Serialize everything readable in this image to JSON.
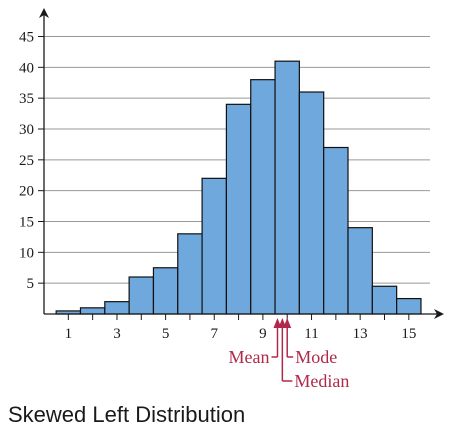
{
  "caption": "Skewed Left Distribution",
  "chart_data": {
    "type": "bar",
    "title": "",
    "xlabel": "",
    "ylabel": "",
    "x": [
      1,
      2,
      3,
      4,
      5,
      6,
      7,
      8,
      9,
      10,
      11,
      12,
      13,
      14,
      15
    ],
    "values": [
      0.5,
      1,
      2,
      6,
      7.5,
      13,
      22,
      34,
      38,
      41,
      36,
      27,
      14,
      4.5,
      2.5
    ],
    "xlim": [
      0,
      16.2
    ],
    "ylim": [
      0,
      48
    ],
    "x_ticks": [
      1,
      3,
      5,
      7,
      9,
      11,
      13,
      15
    ],
    "y_ticks": [
      5,
      10,
      15,
      20,
      25,
      30,
      35,
      40,
      45
    ],
    "grid": "horizontal",
    "bar_color": "#6fa8dc",
    "bar_edge_color": "#111111",
    "grid_color": "#999999",
    "annotation_color": "#b0294a",
    "annotations": [
      {
        "label": "Mean",
        "x": 9.6
      },
      {
        "label": "Median",
        "x": 9.8
      },
      {
        "label": "Mode",
        "x": 10.0
      }
    ]
  }
}
